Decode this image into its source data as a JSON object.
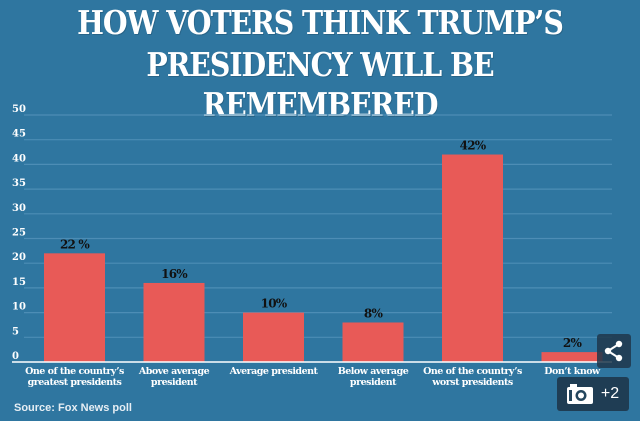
{
  "chart_data": {
    "type": "bar",
    "title": "HOW VOTERS THINK TRUMP'S PRESIDENCY WILL BE REMEMBERED",
    "title_lines": [
      "HOW VOTERS THINK TRUMP’S",
      "PRESIDENCY WILL BE REMEMBERED"
    ],
    "categories": [
      [
        "One of the country’s",
        "greatest presidents"
      ],
      [
        "Above average",
        "president"
      ],
      [
        "Average president"
      ],
      [
        "Below average",
        "president"
      ],
      [
        "One of the country’s",
        "worst presidents"
      ],
      [
        "Don’t know"
      ]
    ],
    "values": [
      22,
      16,
      10,
      8,
      42,
      2
    ],
    "data_labels": [
      "22 %",
      "16%",
      "10%",
      "8%",
      "42%",
      "2%"
    ],
    "xlabel": "",
    "ylabel": "",
    "ylim": [
      0,
      50
    ],
    "yticks": [
      0,
      5,
      10,
      15,
      20,
      25,
      30,
      35,
      40,
      45,
      50
    ],
    "grid": true,
    "colors": {
      "background": "#2f76a0",
      "bar": "#e85a57",
      "grid": "#4d8db5",
      "text": "#ffffff",
      "label": "#111111"
    },
    "source": "Source: Fox News poll"
  },
  "overlay": {
    "share_icon": "share-icon",
    "camera_icon": "camera-icon",
    "photo_count": "+2"
  }
}
